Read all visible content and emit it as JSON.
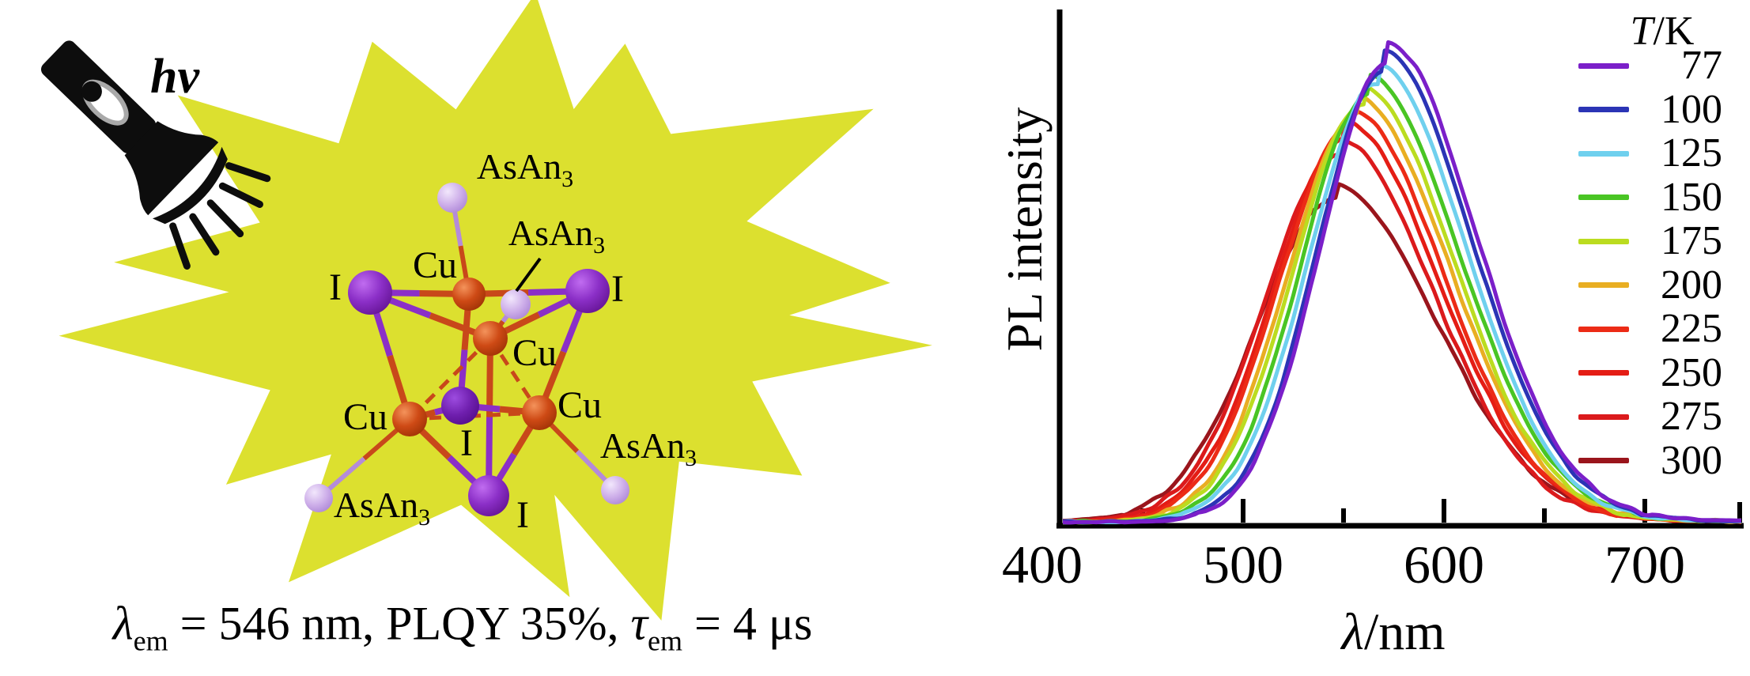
{
  "figure": {
    "light_source_label": "hν",
    "molecule": {
      "copper_label": "Cu",
      "iodine_label": "I",
      "ligand_label": "AsAn",
      "ligand_label_sub": "3"
    },
    "formula": {
      "lambda_symbol": "λ",
      "lambda_sub": "em",
      "middle_text": " = 546 nm, PLQY 35%, ",
      "tau_symbol": "τ",
      "tau_sub": "em",
      "end_text": " = 4 μs"
    },
    "colors": {
      "starburst": "#DCE02F",
      "copper_atom": "#C9481C",
      "iodine_atom": "#8B2FC7",
      "arsenic_ligand_atom": "#CDAEE9"
    }
  },
  "chart": {
    "ylabel": "PL intensity",
    "xlabel_symbol": "λ",
    "xlabel_unit": "/nm",
    "legend_title_symbol": "T",
    "legend_title_unit": "/K"
  },
  "chart_data": {
    "type": "line",
    "xlabel": "λ/nm",
    "ylabel": "PL intensity",
    "xlim": [
      400,
      760
    ],
    "x_ticks_labeled": [
      400,
      500,
      600,
      700
    ],
    "x_ticks_minor": [
      450,
      550,
      650,
      750
    ],
    "y_ticks": [],
    "grid": false,
    "legend_title": "T/K",
    "legend_position": "top-right",
    "series": [
      {
        "name": "77",
        "temperature_K": 77,
        "color": "#7B1FC9",
        "peak_nm": 572,
        "peak_rel_intensity": 0.94,
        "sigma_left_nm": 33,
        "sigma_right_nm": 44
      },
      {
        "name": "100",
        "temperature_K": 100,
        "color": "#2B34B5",
        "peak_nm": 570,
        "peak_rel_intensity": 0.92,
        "sigma_left_nm": 33,
        "sigma_right_nm": 44
      },
      {
        "name": "125",
        "temperature_K": 125,
        "color": "#6FD0EE",
        "peak_nm": 567,
        "peak_rel_intensity": 0.895,
        "sigma_left_nm": 34,
        "sigma_right_nm": 44
      },
      {
        "name": "150",
        "temperature_K": 150,
        "color": "#49C524",
        "peak_nm": 563,
        "peak_rel_intensity": 0.872,
        "sigma_left_nm": 34,
        "sigma_right_nm": 45
      },
      {
        "name": "175",
        "temperature_K": 175,
        "color": "#BBDC20",
        "peak_nm": 560,
        "peak_rel_intensity": 0.851,
        "sigma_left_nm": 35,
        "sigma_right_nm": 45
      },
      {
        "name": "200",
        "temperature_K": 200,
        "color": "#E9AE22",
        "peak_nm": 557,
        "peak_rel_intensity": 0.83,
        "sigma_left_nm": 35,
        "sigma_right_nm": 46
      },
      {
        "name": "225",
        "temperature_K": 225,
        "color": "#EC2B16",
        "peak_nm": 554,
        "peak_rel_intensity": 0.806,
        "sigma_left_nm": 36,
        "sigma_right_nm": 46
      },
      {
        "name": "250",
        "temperature_K": 250,
        "color": "#E41D15",
        "peak_nm": 551,
        "peak_rel_intensity": 0.78,
        "sigma_left_nm": 36,
        "sigma_right_nm": 47
      },
      {
        "name": "275",
        "temperature_K": 275,
        "color": "#DB1A1C",
        "peak_nm": 548,
        "peak_rel_intensity": 0.748,
        "sigma_left_nm": 37,
        "sigma_right_nm": 47
      },
      {
        "name": "300",
        "temperature_K": 300,
        "color": "#9A151C",
        "peak_nm": 546,
        "peak_rel_intensity": 0.66,
        "sigma_left_nm": 39,
        "sigma_right_nm": 50
      }
    ]
  }
}
